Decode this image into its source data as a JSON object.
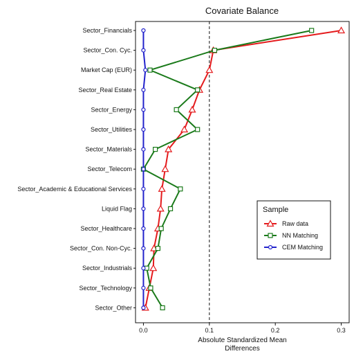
{
  "chart_data": {
    "type": "line",
    "title": "Covariate Balance",
    "xlabel_line1": "Absolute Standardized Mean",
    "xlabel_line2": "Differences",
    "ylabel": "",
    "xlim": [
      -0.012,
      0.312
    ],
    "x_ticks": [
      0.0,
      0.1,
      0.2,
      0.3
    ],
    "x_tick_labels": [
      "0.0",
      "0.1",
      "0.2",
      "0.3"
    ],
    "threshold": 0.1,
    "grid": false,
    "legend": {
      "title": "Sample",
      "position": "right"
    },
    "categories": [
      "Sector_Financials",
      "Sector_Con. Cyc.",
      "Market Cap (EUR)",
      "Sector_Real Estate",
      "Sector_Energy",
      "Sector_Utilities",
      "Sector_Materials",
      "Sector_Telecom",
      "Sector_Academic & Educational Services",
      "Liquid Flag",
      "Sector_Healthcare",
      "Sector_Con. Non-Cyc.",
      "Sector_Industrials",
      "Sector_Technology",
      "Sector_Other"
    ],
    "series": [
      {
        "name": "Raw data",
        "color": "#e41a1c",
        "marker": "triangle",
        "values": [
          0.3,
          0.106,
          0.1,
          0.085,
          0.074,
          0.062,
          0.038,
          0.033,
          0.028,
          0.026,
          0.022,
          0.016,
          0.015,
          0.009,
          0.003
        ]
      },
      {
        "name": "NN Matching",
        "color": "#1a7a1a",
        "marker": "square",
        "values": [
          0.255,
          0.108,
          0.01,
          0.082,
          0.05,
          0.082,
          0.018,
          0.0,
          0.056,
          0.041,
          0.027,
          0.022,
          0.005,
          0.011,
          0.029
        ]
      },
      {
        "name": "CEM Matching",
        "color": "#2222cc",
        "marker": "circle",
        "values": [
          0.0,
          0.0,
          0.003,
          0.0,
          0.0,
          0.0,
          0.0,
          0.0,
          0.0,
          0.0,
          0.0,
          0.0,
          0.0,
          0.0,
          0.0
        ]
      }
    ]
  }
}
